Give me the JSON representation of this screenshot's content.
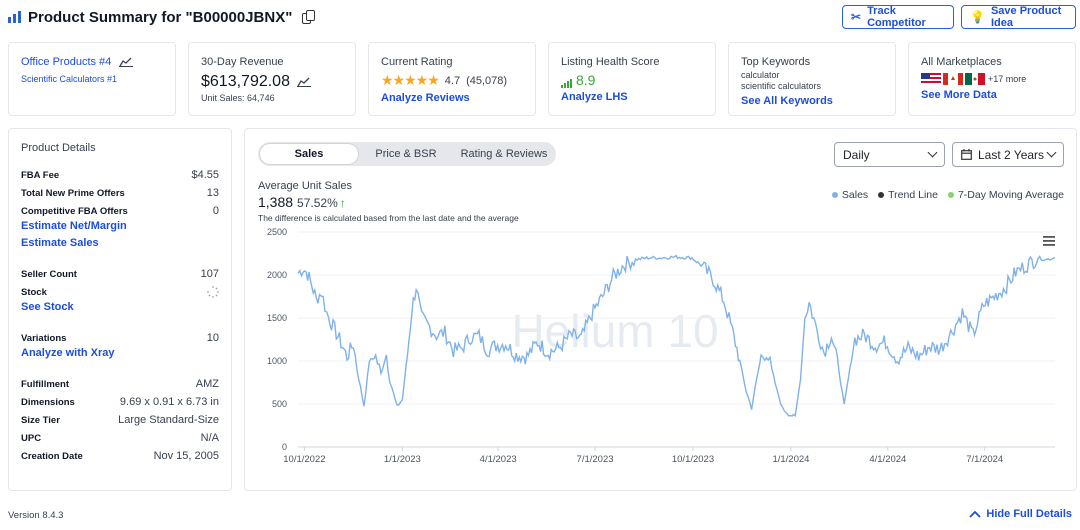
{
  "header": {
    "title": "Product Summary for \"B00000JBNX\"",
    "track_competitor": "Track Competitor",
    "save_product_idea": "Save Product Idea"
  },
  "cards": {
    "category": {
      "main": "Office Products #4",
      "sub": "Scientific Calculators #1"
    },
    "revenue": {
      "label": "30-Day Revenue",
      "value": "$613,792.08",
      "unit_sales_label": "Unit Sales:",
      "unit_sales_value": "64,746"
    },
    "rating": {
      "label": "Current Rating",
      "value": "4.7",
      "count": "(45,078)",
      "link": "Analyze Reviews",
      "stars": 4.7
    },
    "health": {
      "label": "Listing Health Score",
      "value": "8.9",
      "link": "Analyze LHS"
    },
    "keywords": {
      "label": "Top Keywords",
      "kw1": "calculator",
      "kw2": "scientific calculators",
      "link": "See All Keywords"
    },
    "marketplaces": {
      "label": "All Marketplaces",
      "more": "+17 more",
      "link": "See More Data"
    }
  },
  "product_details": {
    "title": "Product Details",
    "fba_fee_label": "FBA Fee",
    "fba_fee": "$4.55",
    "prime_label": "Total New Prime Offers",
    "prime": "13",
    "comp_label": "Competitive FBA Offers",
    "comp": "0",
    "net_margin": "Estimate Net/Margin",
    "est_sales": "Estimate Sales",
    "seller_count_label": "Seller Count",
    "seller_count": "107",
    "stock_label": "Stock",
    "see_stock": "See Stock",
    "variations_label": "Variations",
    "variations": "10",
    "xray": "Analyze with Xray",
    "fulfillment_label": "Fulfillment",
    "fulfillment": "AMZ",
    "dimensions_label": "Dimensions",
    "dimensions": "9.69 x 0.91 x 6.73 in",
    "size_tier_label": "Size Tier",
    "size_tier": "Large Standard-Size",
    "upc_label": "UPC",
    "upc": "N/A",
    "creation_label": "Creation Date",
    "creation": "Nov 15, 2005"
  },
  "chart_panel": {
    "tabs": [
      "Sales",
      "Price & BSR",
      "Rating & Reviews"
    ],
    "active_tab": "Sales",
    "granularity": "Daily",
    "range": "Last 2 Years",
    "metric_label": "Average Unit Sales",
    "metric_value": "1,388",
    "metric_change": "57.52%",
    "metric_note": "The difference is calculated based from the last date and the average",
    "legend": [
      "Sales",
      "Trend Line",
      "7-Day Moving Average"
    ],
    "watermark": "Helium 10"
  },
  "colors": {
    "accent": "#2563d6",
    "sales_line": "#7fb2ea",
    "trend": "#333333",
    "moving_avg": "#86d46b",
    "stars": "#f5a623",
    "health": "#3aa53a",
    "up_arrow": "#3aa53a"
  },
  "chart_data": {
    "type": "line",
    "xlabel": "",
    "ylabel": "",
    "ylim": [
      0,
      2500
    ],
    "yticks": [
      0,
      500,
      1000,
      1500,
      2000,
      2500
    ],
    "xticks": [
      "10/1/2022",
      "1/1/2023",
      "4/1/2023",
      "7/1/2023",
      "10/1/2023",
      "1/1/2024",
      "4/1/2024",
      "7/1/2024"
    ],
    "series": [
      {
        "name": "Sales",
        "points": [
          [
            "2022-09-25",
            2020
          ],
          [
            "2022-09-30",
            2080
          ],
          [
            "2022-10-04",
            2010
          ],
          [
            "2022-10-08",
            1880
          ],
          [
            "2022-10-12",
            1720
          ],
          [
            "2022-10-17",
            1800
          ],
          [
            "2022-10-22",
            1560
          ],
          [
            "2022-10-28",
            1400
          ],
          [
            "2022-11-03",
            1250
          ],
          [
            "2022-11-10",
            1050
          ],
          [
            "2022-11-16",
            1200
          ],
          [
            "2022-11-21",
            800
          ],
          [
            "2022-11-26",
            480
          ],
          [
            "2022-12-01",
            1000
          ],
          [
            "2022-12-07",
            1050
          ],
          [
            "2022-12-12",
            850
          ],
          [
            "2022-12-17",
            1080
          ],
          [
            "2022-12-22",
            700
          ],
          [
            "2022-12-27",
            470
          ],
          [
            "2023-01-01",
            550
          ],
          [
            "2023-01-06",
            1100
          ],
          [
            "2023-01-10",
            1600
          ],
          [
            "2023-01-14",
            1870
          ],
          [
            "2023-01-19",
            1500
          ],
          [
            "2023-01-25",
            1420
          ],
          [
            "2023-02-02",
            1300
          ],
          [
            "2023-02-10",
            1330
          ],
          [
            "2023-02-18",
            1120
          ],
          [
            "2023-02-26",
            1150
          ],
          [
            "2023-03-06",
            1280
          ],
          [
            "2023-03-14",
            1290
          ],
          [
            "2023-03-22",
            1130
          ],
          [
            "2023-03-30",
            1180
          ],
          [
            "2023-04-08",
            1200
          ],
          [
            "2023-04-18",
            1070
          ],
          [
            "2023-04-28",
            1050
          ],
          [
            "2023-05-08",
            1220
          ],
          [
            "2023-05-18",
            1100
          ],
          [
            "2023-05-28",
            1150
          ],
          [
            "2023-06-08",
            1300
          ],
          [
            "2023-06-18",
            1260
          ],
          [
            "2023-06-28",
            1550
          ],
          [
            "2023-07-08",
            1750
          ],
          [
            "2023-07-18",
            1980
          ],
          [
            "2023-07-28",
            2120
          ],
          [
            "2023-08-08",
            2180
          ],
          [
            "2023-08-20",
            2200
          ],
          [
            "2023-09-01",
            2200
          ],
          [
            "2023-09-15",
            2210
          ],
          [
            "2023-09-30",
            2200
          ],
          [
            "2023-10-10",
            2100
          ],
          [
            "2023-10-20",
            1950
          ],
          [
            "2023-10-30",
            1700
          ],
          [
            "2023-11-07",
            1350
          ],
          [
            "2023-11-14",
            1000
          ],
          [
            "2023-11-20",
            650
          ],
          [
            "2023-11-25",
            450
          ],
          [
            "2023-11-30",
            800
          ],
          [
            "2023-12-04",
            1050
          ],
          [
            "2023-12-09",
            1100
          ],
          [
            "2023-12-14",
            900
          ],
          [
            "2023-12-19",
            650
          ],
          [
            "2023-12-24",
            450
          ],
          [
            "2023-12-30",
            380
          ],
          [
            "2024-01-05",
            350
          ],
          [
            "2024-01-10",
            800
          ],
          [
            "2024-01-14",
            1500
          ],
          [
            "2024-01-18",
            1680
          ],
          [
            "2024-01-24",
            1420
          ],
          [
            "2024-02-01",
            1100
          ],
          [
            "2024-02-08",
            1300
          ],
          [
            "2024-02-15",
            900
          ],
          [
            "2024-02-20",
            480
          ],
          [
            "2024-02-24",
            800
          ],
          [
            "2024-03-01",
            1250
          ],
          [
            "2024-03-10",
            1300
          ],
          [
            "2024-03-20",
            1180
          ],
          [
            "2024-03-30",
            1220
          ],
          [
            "2024-04-10",
            1020
          ],
          [
            "2024-04-20",
            1150
          ],
          [
            "2024-04-30",
            1050
          ],
          [
            "2024-05-10",
            1170
          ],
          [
            "2024-05-20",
            1140
          ],
          [
            "2024-05-30",
            1320
          ],
          [
            "2024-06-10",
            1560
          ],
          [
            "2024-06-20",
            1300
          ],
          [
            "2024-06-30",
            1650
          ],
          [
            "2024-07-10",
            1750
          ],
          [
            "2024-07-20",
            1850
          ],
          [
            "2024-07-30",
            2030
          ],
          [
            "2024-08-10",
            2120
          ],
          [
            "2024-08-20",
            2200
          ],
          [
            "2024-08-28",
            2180
          ],
          [
            "2024-09-05",
            2200
          ]
        ]
      }
    ],
    "grid": true,
    "legend_position": "top-right"
  },
  "footer": {
    "version": "Version 8.4.3",
    "hide_details": "Hide Full Details"
  }
}
